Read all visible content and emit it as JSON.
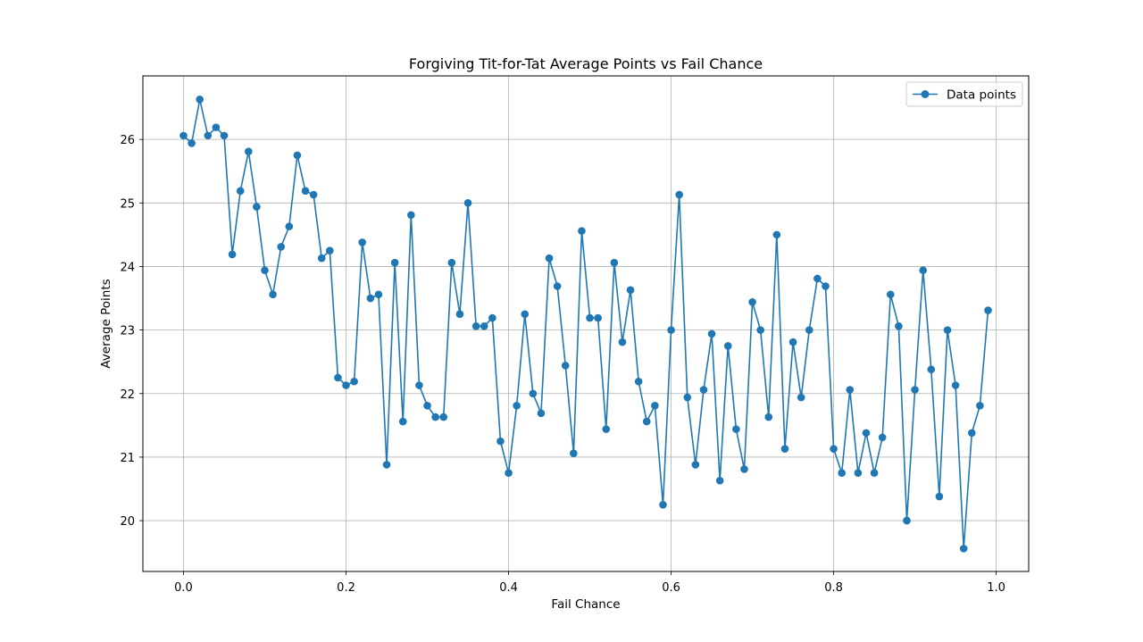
{
  "chart_data": {
    "type": "line",
    "title": "Forgiving Tit-for-Tat Average Points vs Fail Chance",
    "xlabel": "Fail Chance",
    "ylabel": "Average Points",
    "xlim": [
      -0.05,
      1.04
    ],
    "ylim": [
      19.2,
      27.0
    ],
    "xticks": [
      0.0,
      0.2,
      0.4,
      0.6,
      0.8,
      1.0
    ],
    "xtick_labels": [
      "0.0",
      "0.2",
      "0.4",
      "0.6",
      "0.8",
      "1.0"
    ],
    "yticks": [
      20,
      21,
      22,
      23,
      24,
      25,
      26
    ],
    "ytick_labels": [
      "20",
      "21",
      "22",
      "23",
      "24",
      "25",
      "26"
    ],
    "grid": true,
    "legend_position": "top-right",
    "colors": {
      "series": "#1f77b4",
      "grid": "#b0b0b0",
      "axes": "#000000"
    },
    "series": [
      {
        "name": "Data points",
        "marker": "circle",
        "x": [
          0.0,
          0.01,
          0.02,
          0.03,
          0.04,
          0.05,
          0.06,
          0.07,
          0.08,
          0.09,
          0.1,
          0.11,
          0.12,
          0.13,
          0.14,
          0.15,
          0.16,
          0.17,
          0.18,
          0.19,
          0.2,
          0.21,
          0.22,
          0.23,
          0.24,
          0.25,
          0.26,
          0.27,
          0.28,
          0.29,
          0.3,
          0.31,
          0.32,
          0.33,
          0.34,
          0.35,
          0.36,
          0.37,
          0.38,
          0.39,
          0.4,
          0.41,
          0.42,
          0.43,
          0.44,
          0.45,
          0.46,
          0.47,
          0.48,
          0.49,
          0.5,
          0.51,
          0.52,
          0.53,
          0.54,
          0.55,
          0.56,
          0.57,
          0.58,
          0.59,
          0.6,
          0.61,
          0.62,
          0.63,
          0.64,
          0.65,
          0.66,
          0.67,
          0.68,
          0.69,
          0.7,
          0.71,
          0.72,
          0.73,
          0.74,
          0.75,
          0.76,
          0.77,
          0.78,
          0.79,
          0.8,
          0.81,
          0.82,
          0.83,
          0.84,
          0.85,
          0.86,
          0.87,
          0.88,
          0.89,
          0.9,
          0.91,
          0.92,
          0.93,
          0.94,
          0.95,
          0.96,
          0.97,
          0.98,
          0.99
        ],
        "y": [
          26.06,
          25.94,
          26.63,
          26.06,
          26.19,
          26.06,
          24.19,
          25.19,
          25.81,
          24.94,
          23.94,
          23.56,
          24.31,
          24.63,
          25.75,
          25.19,
          25.13,
          24.13,
          24.25,
          22.25,
          22.13,
          22.19,
          24.38,
          23.5,
          23.56,
          20.88,
          24.06,
          21.56,
          24.81,
          22.13,
          21.81,
          21.63,
          21.63,
          24.06,
          23.25,
          25.0,
          23.06,
          23.06,
          23.19,
          21.25,
          20.75,
          21.81,
          23.25,
          22.0,
          21.69,
          24.13,
          23.69,
          22.44,
          21.06,
          24.56,
          23.19,
          23.19,
          21.44,
          24.06,
          22.81,
          23.63,
          22.19,
          21.56,
          21.81,
          20.25,
          23.0,
          25.13,
          21.94,
          20.88,
          22.06,
          22.94,
          20.63,
          22.75,
          21.44,
          20.81,
          23.44,
          23.0,
          21.63,
          24.5,
          21.13,
          22.81,
          21.94,
          23.0,
          23.81,
          23.69,
          21.13,
          20.75,
          22.06,
          20.75,
          21.38,
          20.75,
          21.31,
          23.56,
          23.06,
          20.0,
          22.06,
          23.94,
          22.38,
          20.38,
          23.0,
          22.13,
          19.56,
          21.38,
          21.81,
          23.31
        ]
      }
    ]
  }
}
